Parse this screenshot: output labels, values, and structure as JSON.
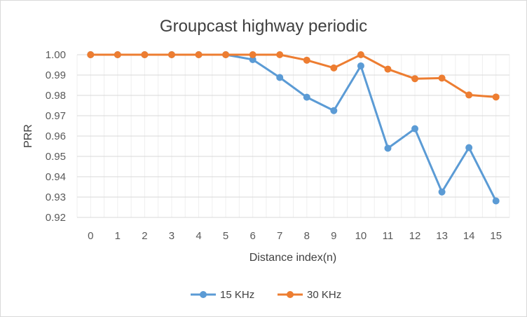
{
  "chart_data": {
    "type": "line",
    "title": "Groupcast highway periodic",
    "xlabel": "Distance index(n)",
    "ylabel": "PRR",
    "categories": [
      "0",
      "1",
      "2",
      "3",
      "4",
      "5",
      "6",
      "7",
      "8",
      "9",
      "10",
      "11",
      "12",
      "13",
      "14",
      "15"
    ],
    "ylim": [
      0.92,
      1.0
    ],
    "yticks": [
      "0.92",
      "0.93",
      "0.94",
      "0.95",
      "0.96",
      "0.97",
      "0.98",
      "0.99",
      "1.00"
    ],
    "grid": true,
    "legend_position": "bottom",
    "series": [
      {
        "name": "15 KHz",
        "color": "#5b9bd5",
        "values": [
          1.0,
          1.0,
          1.0,
          1.0,
          1.0,
          1.0,
          0.9976,
          0.9888,
          0.9791,
          0.9725,
          0.9945,
          0.954,
          0.9636,
          0.9325,
          0.9543,
          0.9281
        ]
      },
      {
        "name": "30 KHz",
        "color": "#ed7d31",
        "values": [
          1.0,
          1.0,
          1.0,
          1.0,
          1.0,
          1.0,
          1.0,
          1.0,
          0.9973,
          0.9935,
          1.0,
          0.9929,
          0.9882,
          0.9885,
          0.9802,
          0.9792
        ]
      }
    ]
  }
}
